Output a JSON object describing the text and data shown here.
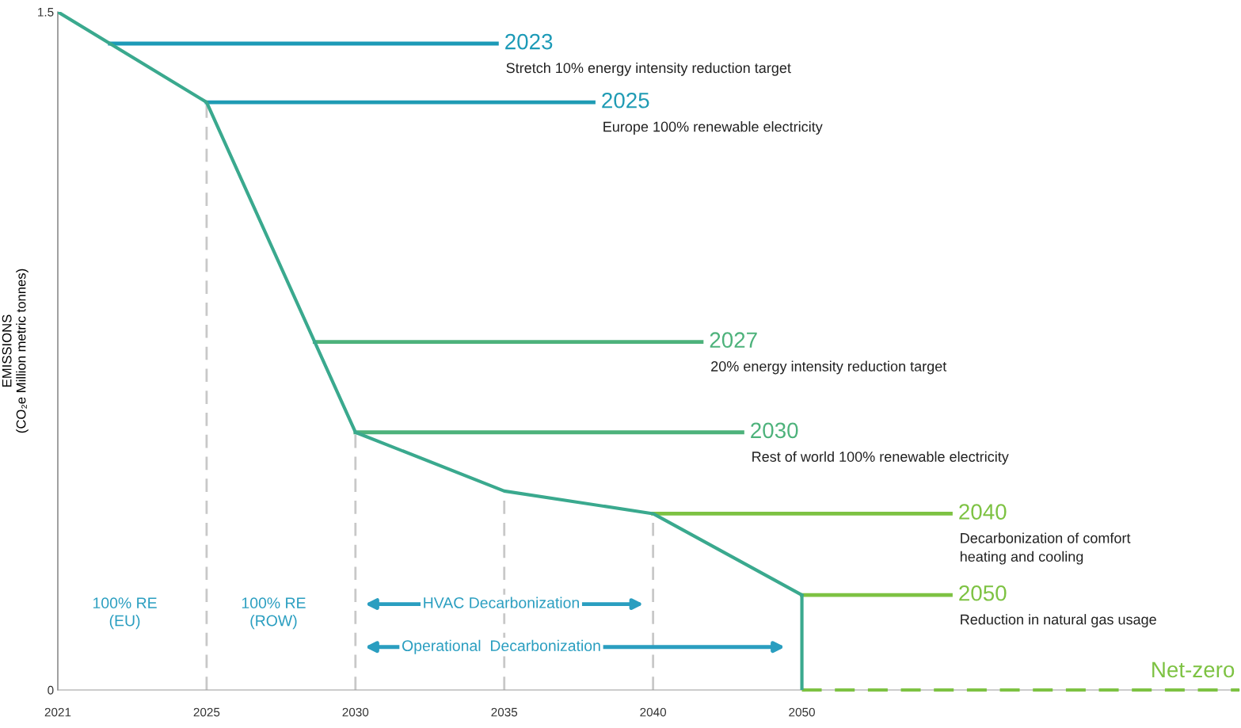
{
  "chart_data": {
    "type": "line",
    "ylabel": "EMISSIONS\n(CO₂e Million metric tonnes)",
    "categories": [
      "2021",
      "2025",
      "2030",
      "2035",
      "2040",
      "2050"
    ],
    "series": [
      {
        "color": "#3aa98e",
        "values": [
          1.5,
          1.3,
          0.57,
          0.44,
          0.39,
          0.21
        ],
        "errors": [
          null,
          null,
          null,
          null,
          null,
          [
            0,
            0.21
          ]
        ]
      }
    ],
    "ylim": [
      0,
      1.5
    ],
    "yticks": [
      0,
      1.5
    ],
    "grid": false,
    "marker": "none",
    "line_style": "solid",
    "ref_lines": [
      {
        "axis": "y",
        "value": 1.43,
        "color": "#1c9ab7"
      },
      {
        "axis": "y",
        "value": 1.3,
        "color": "#1f9bb4"
      },
      {
        "axis": "y",
        "value": 0.77,
        "color": "#4db27b"
      },
      {
        "axis": "y",
        "value": 0.57,
        "color": "#4db27b"
      },
      {
        "axis": "y",
        "value": 0.39,
        "color": "#7dc242"
      },
      {
        "axis": "y",
        "value": 0.21,
        "color": "#7dc242"
      },
      {
        "axis": "y",
        "value": 0,
        "label": "Net-zero",
        "color": "#7dc242",
        "line_style": "dashed"
      },
      {
        "axis": "x",
        "value": "2025",
        "color": "#c8c8c8",
        "line_style": "dashed"
      },
      {
        "axis": "x",
        "value": "2030",
        "color": "#c8c8c8",
        "line_style": "dashed"
      },
      {
        "axis": "x",
        "value": "2035",
        "color": "#c8c8c8",
        "line_style": "dashed"
      },
      {
        "axis": "x",
        "value": "2040",
        "color": "#c8c8c8",
        "line_style": "dashed"
      }
    ],
    "annotations": [
      "2023",
      "Stretch 10% energy intensity reduction target",
      "2025",
      "Europe 100% renewable electricity",
      "2027",
      "20% energy intensity reduction target",
      "2030",
      "Rest of world 100% renewable electricity",
      "2040",
      "Decarbonization of comfort\nheating and cooling",
      "2050",
      "Reduction in natural gas usage",
      "100% RE\n(EU)",
      "100% RE\n(ROW)",
      "HVAC Decarbonization",
      "Operational  Decarbonization"
    ]
  }
}
